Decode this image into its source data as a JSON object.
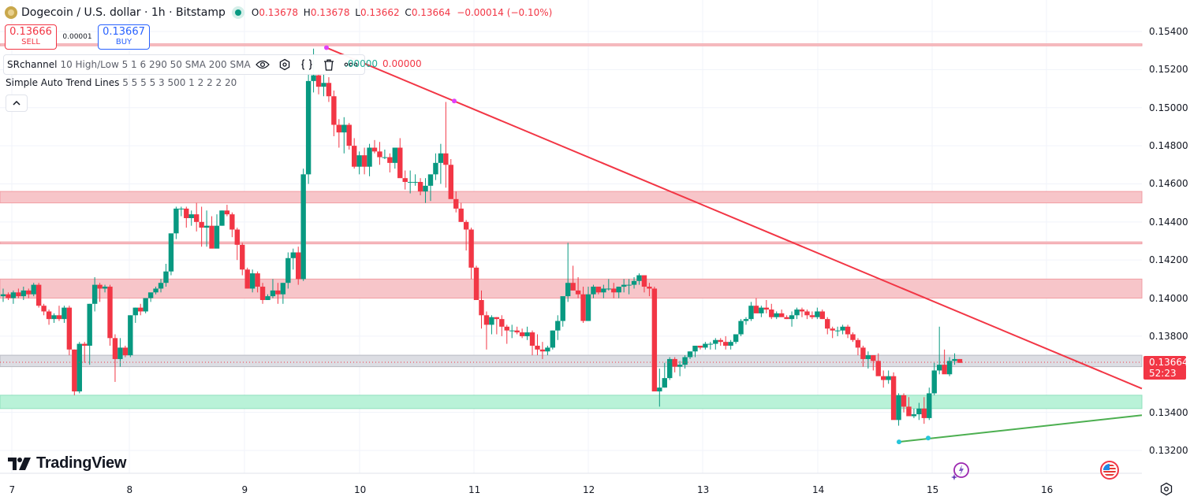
{
  "header": {
    "symbol_title": "Dogecoin / U.S. dollar · 1h · Bitstamp",
    "ohlc": {
      "o_label": "O",
      "o_value": "0.13678",
      "h_label": "H",
      "h_value": "0.13678",
      "l_label": "L",
      "l_value": "0.13662",
      "c_label": "C",
      "c_value": "0.13664",
      "change": "−0.00014 (−0.10%)"
    }
  },
  "trade": {
    "sell_price": "0.13666",
    "sell_label": "SELL",
    "spread": "0.00001",
    "buy_price": "0.13667",
    "buy_label": "BUY"
  },
  "indicators": [
    {
      "name": "SRchannel",
      "args": "10 High/Low 5 1 6 290 50 SMA 200 SMA",
      "value_green": ".00000",
      "value_red": "0.00000"
    },
    {
      "name": "Simple Auto Trend Lines",
      "args": "5 5 5 5 3 500 1 2 2 2 20"
    }
  ],
  "indicator_icons": [
    "eye-icon",
    "settings-icon",
    "source-code-icon",
    "trash-icon",
    "more-icon"
  ],
  "price_axis": {
    "labels": [
      "0.15400",
      "0.15200",
      "0.15000",
      "0.14800",
      "0.14600",
      "0.14400",
      "0.14200",
      "0.14000",
      "0.13800",
      "0.13400",
      "0.13200"
    ],
    "current_price": "0.13664",
    "countdown": "52:23"
  },
  "time_axis": {
    "labels": [
      "7",
      "8",
      "9",
      "10",
      "11",
      "12",
      "13",
      "14",
      "15",
      "16"
    ]
  },
  "branding": {
    "logo_text": "TradingView"
  },
  "colors": {
    "up": "#089981",
    "down": "#f23645",
    "resistance_zone": "#f7c5c9",
    "support_zone": "#b9f2d8",
    "current_zone": "#dcdde3",
    "trend_down": "#f23645",
    "trend_up": "#4caf50",
    "pivot_high": "#e040fb",
    "pivot_low": "#26c6da"
  },
  "chart_data": {
    "type": "candlestick",
    "title": "Dogecoin / U.S. dollar · 1h · Bitstamp",
    "ylim": [
      0.1312,
      0.1547
    ],
    "x_ticks": [
      "7",
      "8",
      "9",
      "10",
      "11",
      "12",
      "13",
      "14",
      "15",
      "16"
    ],
    "zones": [
      {
        "type": "resistance",
        "from": 0.15325,
        "to": 0.15335
      },
      {
        "type": "resistance",
        "from": 0.145,
        "to": 0.1456
      },
      {
        "type": "resistance",
        "from": 0.14285,
        "to": 0.14295
      },
      {
        "type": "resistance",
        "from": 0.14,
        "to": 0.141
      },
      {
        "type": "current",
        "from": 0.1364,
        "to": 0.137
      },
      {
        "type": "support",
        "from": 0.1342,
        "to": 0.1349
      }
    ],
    "trendlines": [
      {
        "name": "down",
        "from": [
          "9.7",
          0.15315
        ],
        "to": [
          "16.8",
          0.13525
        ],
        "pivots": [
          [
            "9.7",
            0.15315
          ],
          [
            "10.83",
            0.15035
          ]
        ]
      },
      {
        "name": "up",
        "from": [
          "14.67",
          0.13245
        ],
        "to": [
          "16.8",
          0.13385
        ],
        "pivots": [
          [
            "14.67",
            0.13245
          ],
          [
            "14.92",
            0.13265
          ]
        ]
      }
    ],
    "candles_ohlc": [
      [
        0.1401,
        0.1405,
        0.1398,
        0.1402
      ],
      [
        0.1402,
        0.1403,
        0.1399,
        0.14
      ],
      [
        0.14,
        0.1404,
        0.1397,
        0.1403
      ],
      [
        0.1403,
        0.1405,
        0.14,
        0.1401
      ],
      [
        0.1401,
        0.1406,
        0.1399,
        0.1404
      ],
      [
        0.1404,
        0.1405,
        0.14,
        0.1402
      ],
      [
        0.1402,
        0.1408,
        0.1401,
        0.1407
      ],
      [
        0.1407,
        0.1408,
        0.1395,
        0.1396
      ],
      [
        0.1396,
        0.1397,
        0.1391,
        0.1393
      ],
      [
        0.1393,
        0.1394,
        0.1386,
        0.1389
      ],
      [
        0.1389,
        0.1392,
        0.1387,
        0.1391
      ],
      [
        0.1391,
        0.1396,
        0.1388,
        0.1389
      ],
      [
        0.1389,
        0.1396,
        0.1387,
        0.1395
      ],
      [
        0.1395,
        0.1396,
        0.137,
        0.1373
      ],
      [
        0.1373,
        0.1373,
        0.1349,
        0.1351
      ],
      [
        0.1351,
        0.1377,
        0.135,
        0.1376
      ],
      [
        0.1376,
        0.1377,
        0.1366,
        0.1375
      ],
      [
        0.1375,
        0.1397,
        0.1365,
        0.1397
      ],
      [
        0.1397,
        0.1411,
        0.1393,
        0.1407
      ],
      [
        0.1407,
        0.1408,
        0.1398,
        0.1405
      ],
      [
        0.1405,
        0.1407,
        0.1403,
        0.1406
      ],
      [
        0.1406,
        0.1407,
        0.1375,
        0.1379
      ],
      [
        0.1379,
        0.1381,
        0.1356,
        0.1368
      ],
      [
        0.1368,
        0.1379,
        0.1364,
        0.1374
      ],
      [
        0.1374,
        0.1375,
        0.1369,
        0.137
      ],
      [
        0.137,
        0.1391,
        0.1369,
        0.1391
      ],
      [
        0.1391,
        0.1395,
        0.1387,
        0.1395
      ],
      [
        0.1395,
        0.1397,
        0.1391,
        0.1393
      ],
      [
        0.1393,
        0.14,
        0.1392,
        0.14
      ],
      [
        0.14,
        0.1402,
        0.1398,
        0.1403
      ],
      [
        0.1403,
        0.1406,
        0.1402,
        0.1405
      ],
      [
        0.1405,
        0.141,
        0.1403,
        0.1408
      ],
      [
        0.1408,
        0.1418,
        0.1406,
        0.1414
      ],
      [
        0.1414,
        0.1427,
        0.1412,
        0.1434
      ],
      [
        0.1434,
        0.1448,
        0.1431,
        0.1447
      ],
      [
        0.1447,
        0.1448,
        0.1443,
        0.1447
      ],
      [
        0.1447,
        0.1448,
        0.1437,
        0.1442
      ],
      [
        0.1442,
        0.1446,
        0.1438,
        0.1444
      ],
      [
        0.1444,
        0.145,
        0.1435,
        0.144
      ],
      [
        0.144,
        0.1448,
        0.1427,
        0.1437
      ],
      [
        0.1437,
        0.1446,
        0.1427,
        0.1438
      ],
      [
        0.1438,
        0.1443,
        0.1427,
        0.1426
      ],
      [
        0.1426,
        0.1444,
        0.1428,
        0.1438
      ],
      [
        0.1438,
        0.1446,
        0.1438,
        0.1446
      ],
      [
        0.1446,
        0.1449,
        0.1443,
        0.1444
      ],
      [
        0.1444,
        0.1445,
        0.1432,
        0.1436
      ],
      [
        0.1436,
        0.1437,
        0.142,
        0.1428
      ],
      [
        0.1428,
        0.1429,
        0.1412,
        0.1415
      ],
      [
        0.1415,
        0.1416,
        0.1405,
        0.1405
      ],
      [
        0.1405,
        0.1415,
        0.1403,
        0.1413
      ],
      [
        0.1413,
        0.1414,
        0.1403,
        0.1406
      ],
      [
        0.1406,
        0.1408,
        0.1397,
        0.1399
      ],
      [
        0.1399,
        0.1402,
        0.1399,
        0.1401
      ],
      [
        0.1401,
        0.141,
        0.14,
        0.1404
      ],
      [
        0.1404,
        0.1408,
        0.1397,
        0.1402
      ],
      [
        0.1402,
        0.1408,
        0.1397,
        0.1408
      ],
      [
        0.1408,
        0.1424,
        0.1405,
        0.1421
      ],
      [
        0.1421,
        0.1426,
        0.1415,
        0.1424
      ],
      [
        0.1424,
        0.1427,
        0.1407,
        0.141
      ],
      [
        0.141,
        0.1468,
        0.1409,
        0.1465
      ],
      [
        0.1465,
        0.1522,
        0.146,
        0.1514
      ],
      [
        0.1514,
        0.1531,
        0.1508,
        0.1517
      ],
      [
        0.1517,
        0.152,
        0.1507,
        0.1511
      ],
      [
        0.1511,
        0.1518,
        0.1506,
        0.1513
      ],
      [
        0.1513,
        0.1516,
        0.1503,
        0.1506
      ],
      [
        0.1506,
        0.1509,
        0.1485,
        0.1491
      ],
      [
        0.1491,
        0.1494,
        0.1479,
        0.1487
      ],
      [
        0.1487,
        0.1495,
        0.1476,
        0.1491
      ],
      [
        0.1491,
        0.1492,
        0.1478,
        0.148
      ],
      [
        0.148,
        0.1484,
        0.1468,
        0.1469
      ],
      [
        0.1469,
        0.1477,
        0.1465,
        0.1475
      ],
      [
        0.1475,
        0.1479,
        0.1465,
        0.1469
      ],
      [
        0.1469,
        0.1481,
        0.1464,
        0.1479
      ],
      [
        0.1479,
        0.1483,
        0.1476,
        0.1477
      ],
      [
        0.1477,
        0.1482,
        0.147,
        0.1474
      ],
      [
        0.1474,
        0.1478,
        0.1473,
        0.1474
      ],
      [
        0.1474,
        0.1476,
        0.1466,
        0.1471
      ],
      [
        0.1471,
        0.1479,
        0.1468,
        0.1479
      ],
      [
        0.1479,
        0.1484,
        0.1467,
        0.1463
      ],
      [
        0.1463,
        0.1467,
        0.1457,
        0.1461
      ],
      [
        0.1461,
        0.1467,
        0.1455,
        0.1461
      ],
      [
        0.1461,
        0.1465,
        0.1459,
        0.1461
      ],
      [
        0.1461,
        0.1463,
        0.1454,
        0.1456
      ],
      [
        0.1456,
        0.1463,
        0.145,
        0.1459
      ],
      [
        0.1459,
        0.1463,
        0.1451,
        0.1465
      ],
      [
        0.1465,
        0.1476,
        0.1462,
        0.1471
      ],
      [
        0.1471,
        0.1481,
        0.146,
        0.1476
      ],
      [
        0.1476,
        0.1503,
        0.1458,
        0.147
      ],
      [
        0.147,
        0.1473,
        0.1455,
        0.1452
      ],
      [
        0.1452,
        0.1456,
        0.1445,
        0.1447
      ],
      [
        0.1447,
        0.145,
        0.144,
        0.144
      ],
      [
        0.144,
        0.1441,
        0.1425,
        0.1436
      ],
      [
        0.1436,
        0.1437,
        0.141,
        0.1416
      ],
      [
        0.1416,
        0.1417,
        0.1403,
        0.1399
      ],
      [
        0.1399,
        0.1404,
        0.1384,
        0.1391
      ],
      [
        0.1391,
        0.1393,
        0.1373,
        0.1386
      ],
      [
        0.1386,
        0.1391,
        0.1381,
        0.139
      ],
      [
        0.139,
        0.139,
        0.1381,
        0.1389
      ],
      [
        0.1389,
        0.1391,
        0.138,
        0.1385
      ],
      [
        0.1385,
        0.1386,
        0.1376,
        0.1383
      ],
      [
        0.1383,
        0.1386,
        0.1379,
        0.1383
      ],
      [
        0.1383,
        0.1385,
        0.1381,
        0.1382
      ],
      [
        0.1382,
        0.1384,
        0.1379,
        0.138
      ],
      [
        0.138,
        0.1385,
        0.1378,
        0.1382
      ],
      [
        0.1382,
        0.1383,
        0.137,
        0.1375
      ],
      [
        0.1375,
        0.1381,
        0.137,
        0.1373
      ],
      [
        0.1373,
        0.1377,
        0.1368,
        0.1372
      ],
      [
        0.1372,
        0.1375,
        0.137,
        0.1374
      ],
      [
        0.1374,
        0.1383,
        0.1373,
        0.1383
      ],
      [
        0.1383,
        0.1391,
        0.1378,
        0.1388
      ],
      [
        0.1388,
        0.14,
        0.1385,
        0.1401
      ],
      [
        0.1401,
        0.1429,
        0.1398,
        0.1408
      ],
      [
        0.1408,
        0.1417,
        0.1404,
        0.1404
      ],
      [
        0.1404,
        0.1411,
        0.14,
        0.1402
      ],
      [
        0.1402,
        0.1406,
        0.1387,
        0.1388
      ],
      [
        0.1388,
        0.1406,
        0.1388,
        0.1402
      ],
      [
        0.1402,
        0.1407,
        0.14,
        0.1406
      ],
      [
        0.1406,
        0.1406,
        0.1402,
        0.1403
      ],
      [
        0.1403,
        0.1407,
        0.14,
        0.1405
      ],
      [
        0.1405,
        0.141,
        0.1404,
        0.1405
      ],
      [
        0.1405,
        0.1408,
        0.14,
        0.1403
      ],
      [
        0.1403,
        0.1406,
        0.14,
        0.1406
      ],
      [
        0.1406,
        0.141,
        0.1403,
        0.1407
      ],
      [
        0.1407,
        0.141,
        0.1402,
        0.1407
      ],
      [
        0.1407,
        0.1411,
        0.1405,
        0.1409
      ],
      [
        0.1409,
        0.1413,
        0.1407,
        0.1412
      ],
      [
        0.1412,
        0.1412,
        0.1403,
        0.1406
      ],
      [
        0.1406,
        0.1408,
        0.1401,
        0.1405
      ],
      [
        0.1405,
        0.1406,
        0.1362,
        0.1351
      ],
      [
        0.1351,
        0.1363,
        0.1343,
        0.1353
      ],
      [
        0.1353,
        0.1366,
        0.1353,
        0.1358
      ],
      [
        0.1358,
        0.1369,
        0.1357,
        0.1368
      ],
      [
        0.1368,
        0.1369,
        0.1361,
        0.1364
      ],
      [
        0.1364,
        0.1367,
        0.1359,
        0.1365
      ],
      [
        0.1365,
        0.137,
        0.1363,
        0.1369
      ],
      [
        0.1369,
        0.1372,
        0.1368,
        0.1372
      ],
      [
        0.1372,
        0.1375,
        0.1369,
        0.1375
      ],
      [
        0.1375,
        0.1375,
        0.1373,
        0.1374
      ],
      [
        0.1374,
        0.1377,
        0.1373,
        0.1376
      ],
      [
        0.1376,
        0.1377,
        0.1373,
        0.1376
      ],
      [
        0.1376,
        0.1379,
        0.1373,
        0.1378
      ],
      [
        0.1378,
        0.1379,
        0.1375,
        0.1377
      ],
      [
        0.1377,
        0.138,
        0.1373,
        0.1375
      ],
      [
        0.1375,
        0.1378,
        0.1373,
        0.1377
      ],
      [
        0.1377,
        0.1381,
        0.1376,
        0.1381
      ],
      [
        0.1381,
        0.1389,
        0.138,
        0.1388
      ],
      [
        0.1388,
        0.139,
        0.1386,
        0.1389
      ],
      [
        0.1389,
        0.1398,
        0.1388,
        0.1396
      ],
      [
        0.1396,
        0.14,
        0.1394,
        0.1392
      ],
      [
        0.1392,
        0.1396,
        0.139,
        0.1395
      ],
      [
        0.1395,
        0.1399,
        0.1392,
        0.1394
      ],
      [
        0.1394,
        0.1397,
        0.1389,
        0.139
      ],
      [
        0.139,
        0.1393,
        0.1389,
        0.1392
      ],
      [
        0.1392,
        0.1394,
        0.1391,
        0.139
      ],
      [
        0.139,
        0.1391,
        0.1389,
        0.1389
      ],
      [
        0.1389,
        0.1393,
        0.1385,
        0.1391
      ],
      [
        0.1391,
        0.1395,
        0.1389,
        0.1394
      ],
      [
        0.1394,
        0.1395,
        0.139,
        0.1393
      ],
      [
        0.1393,
        0.1394,
        0.1389,
        0.1391
      ],
      [
        0.1391,
        0.1393,
        0.1389,
        0.139
      ],
      [
        0.139,
        0.1395,
        0.1389,
        0.1393
      ],
      [
        0.1393,
        0.1394,
        0.1389,
        0.1389
      ],
      [
        0.1389,
        0.139,
        0.1381,
        0.1384
      ],
      [
        0.1384,
        0.1385,
        0.1379,
        0.1383
      ],
      [
        0.1383,
        0.1385,
        0.138,
        0.1383
      ],
      [
        0.1383,
        0.1386,
        0.1381,
        0.1385
      ],
      [
        0.1385,
        0.1386,
        0.1379,
        0.1381
      ],
      [
        0.1381,
        0.1382,
        0.1377,
        0.1378
      ],
      [
        0.1378,
        0.1379,
        0.137,
        0.1374
      ],
      [
        0.1374,
        0.1375,
        0.1364,
        0.1368
      ],
      [
        0.1368,
        0.1372,
        0.1363,
        0.137
      ],
      [
        0.137,
        0.137,
        0.1362,
        0.1367
      ],
      [
        0.1367,
        0.1371,
        0.136,
        0.1359
      ],
      [
        0.1359,
        0.1362,
        0.1353,
        0.1357
      ],
      [
        0.1357,
        0.1362,
        0.1355,
        0.1359
      ],
      [
        0.1359,
        0.1361,
        0.1342,
        0.1336
      ],
      [
        0.1336,
        0.135,
        0.1333,
        0.1349
      ],
      [
        0.1349,
        0.135,
        0.134,
        0.1343
      ],
      [
        0.1343,
        0.1348,
        0.1339,
        0.1338
      ],
      [
        0.1338,
        0.1342,
        0.1337,
        0.1339
      ],
      [
        0.1339,
        0.1345,
        0.1336,
        0.1342
      ],
      [
        0.1342,
        0.1348,
        0.1334,
        0.1337
      ],
      [
        0.1337,
        0.1353,
        0.1336,
        0.135
      ],
      [
        0.135,
        0.1366,
        0.1349,
        0.1362
      ],
      [
        0.1362,
        0.1385,
        0.136,
        0.1365
      ],
      [
        0.1365,
        0.1373,
        0.1361,
        0.136
      ],
      [
        0.136,
        0.1369,
        0.1359,
        0.1367
      ],
      [
        0.1367,
        0.1371,
        0.1365,
        0.1368
      ],
      [
        0.1368,
        0.1368,
        0.1366,
        0.1366
      ]
    ]
  }
}
